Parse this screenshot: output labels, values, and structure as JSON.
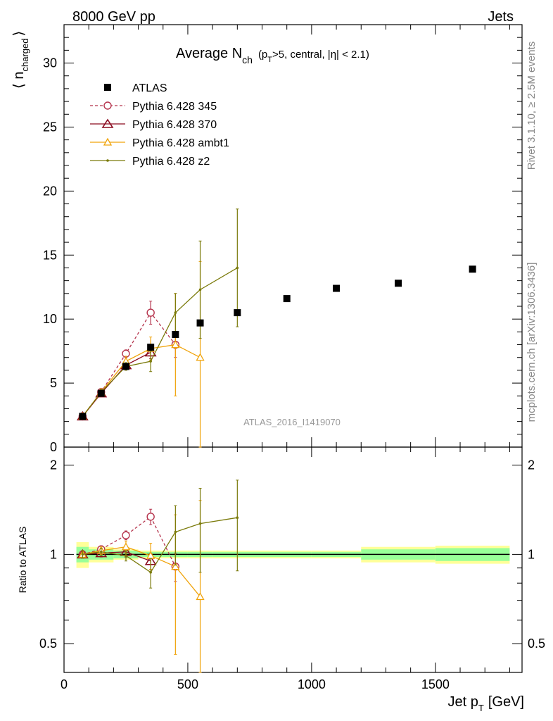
{
  "header": {
    "left": "8000 GeV pp",
    "right": "Jets"
  },
  "side_notes": {
    "rivet": "Rivet 3.1.10, ≥ 2.5M events",
    "mcplots": "mcplots.cern.ch [arXiv:1306.3436]"
  },
  "chart_data": {
    "type": "scatter",
    "title_main": "Average N",
    "title_sub": "ch",
    "title_rest": "(p",
    "title_rest_sub": "T",
    "title_tail": ">5, central, |η| < 2.1)",
    "analysis_id": "ATLAS_2016_I1419070",
    "ylabel_main": "⟨ n",
    "ylabel_sub": "charged",
    "ylabel_close": "⟩",
    "ratio_ylabel": "Ratio to ATLAS",
    "xlabel_main": "Jet p",
    "xlabel_sub": "T",
    "xlabel_unit": "[GeV]",
    "xlim": [
      0,
      1850
    ],
    "ylim": [
      0,
      33
    ],
    "ratio_ylim": [
      0.4,
      2.3
    ],
    "x_ticks": [
      "0",
      "500",
      "1000",
      "1500"
    ],
    "y_ticks": [
      "0",
      "5",
      "10",
      "15",
      "20",
      "25",
      "30"
    ],
    "ratio_ticks": [
      "0.5",
      "1",
      "2"
    ],
    "legend_position": "top-left",
    "bins": [
      50,
      100,
      200,
      300,
      400,
      500,
      600,
      800,
      1000,
      1200,
      1500,
      1800
    ],
    "data": {
      "name": "ATLAS",
      "x": [
        75,
        150,
        250,
        350,
        450,
        550,
        700,
        900,
        1100,
        1350,
        1650
      ],
      "y": [
        2.4,
        4.2,
        6.3,
        7.8,
        8.8,
        9.7,
        10.5,
        11.6,
        12.4,
        12.8,
        13.9
      ],
      "band_inner": [
        0.06,
        0.04,
        0.03,
        0.02,
        0.02,
        0.02,
        0.02,
        0.02,
        0.02,
        0.04,
        0.05
      ],
      "band_outer": [
        0.1,
        0.06,
        0.04,
        0.03,
        0.03,
        0.03,
        0.03,
        0.03,
        0.03,
        0.06,
        0.07
      ]
    },
    "series": [
      {
        "name": "Pythia 6.428 345",
        "color": "#b5334c",
        "marker": "circle",
        "dashed": true,
        "x": [
          75,
          150,
          250,
          350,
          450
        ],
        "y": [
          2.4,
          4.3,
          7.3,
          10.5,
          8.0
        ],
        "err": [
          0.1,
          0.2,
          0.3,
          0.9,
          1.0
        ]
      },
      {
        "name": "Pythia 6.428 370",
        "color": "#8b0a1f",
        "marker": "triangle",
        "dashed": false,
        "x": [
          75,
          150,
          250,
          350
        ],
        "y": [
          2.4,
          4.2,
          6.4,
          7.4
        ],
        "err": [
          0.1,
          0.2,
          0.3,
          0.5
        ]
      },
      {
        "name": "Pythia 6.428 ambt1",
        "color": "#f0a30a",
        "marker": "triangle-open",
        "dashed": false,
        "x": [
          75,
          150,
          250,
          350,
          450,
          550
        ],
        "y": [
          2.4,
          4.3,
          6.7,
          7.7,
          8.0,
          7.0
        ],
        "err": [
          0.1,
          0.2,
          0.4,
          0.9,
          4.0,
          7.5
        ]
      },
      {
        "name": "Pythia 6.428 z2",
        "color": "#7a7a0a",
        "marker": "dot",
        "dashed": false,
        "x": [
          75,
          150,
          250,
          350,
          450,
          550,
          700
        ],
        "y": [
          2.4,
          4.3,
          6.3,
          6.7,
          10.5,
          12.3,
          14.0
        ],
        "err": [
          0.1,
          0.2,
          0.3,
          0.8,
          1.5,
          3.8,
          4.6
        ]
      }
    ],
    "ratio_series": [
      {
        "name": "Pythia 6.428 345",
        "x": [
          75,
          150,
          250,
          350,
          450
        ],
        "y": [
          1.0,
          1.04,
          1.16,
          1.34,
          0.91
        ],
        "err": [
          0.03,
          0.03,
          0.04,
          0.08,
          0.1
        ]
      },
      {
        "name": "Pythia 6.428 370",
        "x": [
          75,
          150,
          250,
          350
        ],
        "y": [
          1.0,
          1.01,
          1.02,
          0.95
        ],
        "err": [
          0.03,
          0.03,
          0.04,
          0.06
        ]
      },
      {
        "name": "Pythia 6.428 ambt1",
        "x": [
          75,
          150,
          250,
          350,
          450,
          550
        ],
        "y": [
          1.0,
          1.03,
          1.06,
          0.99,
          0.91,
          0.72
        ],
        "err": [
          0.03,
          0.03,
          0.05,
          0.1,
          0.45,
          0.8
        ]
      },
      {
        "name": "Pythia 6.428 z2",
        "x": [
          75,
          150,
          250,
          350,
          450,
          550,
          700
        ],
        "y": [
          1.0,
          1.02,
          0.99,
          0.87,
          1.19,
          1.27,
          1.33
        ],
        "err": [
          0.03,
          0.03,
          0.04,
          0.1,
          0.27,
          0.4,
          0.45
        ]
      }
    ]
  }
}
